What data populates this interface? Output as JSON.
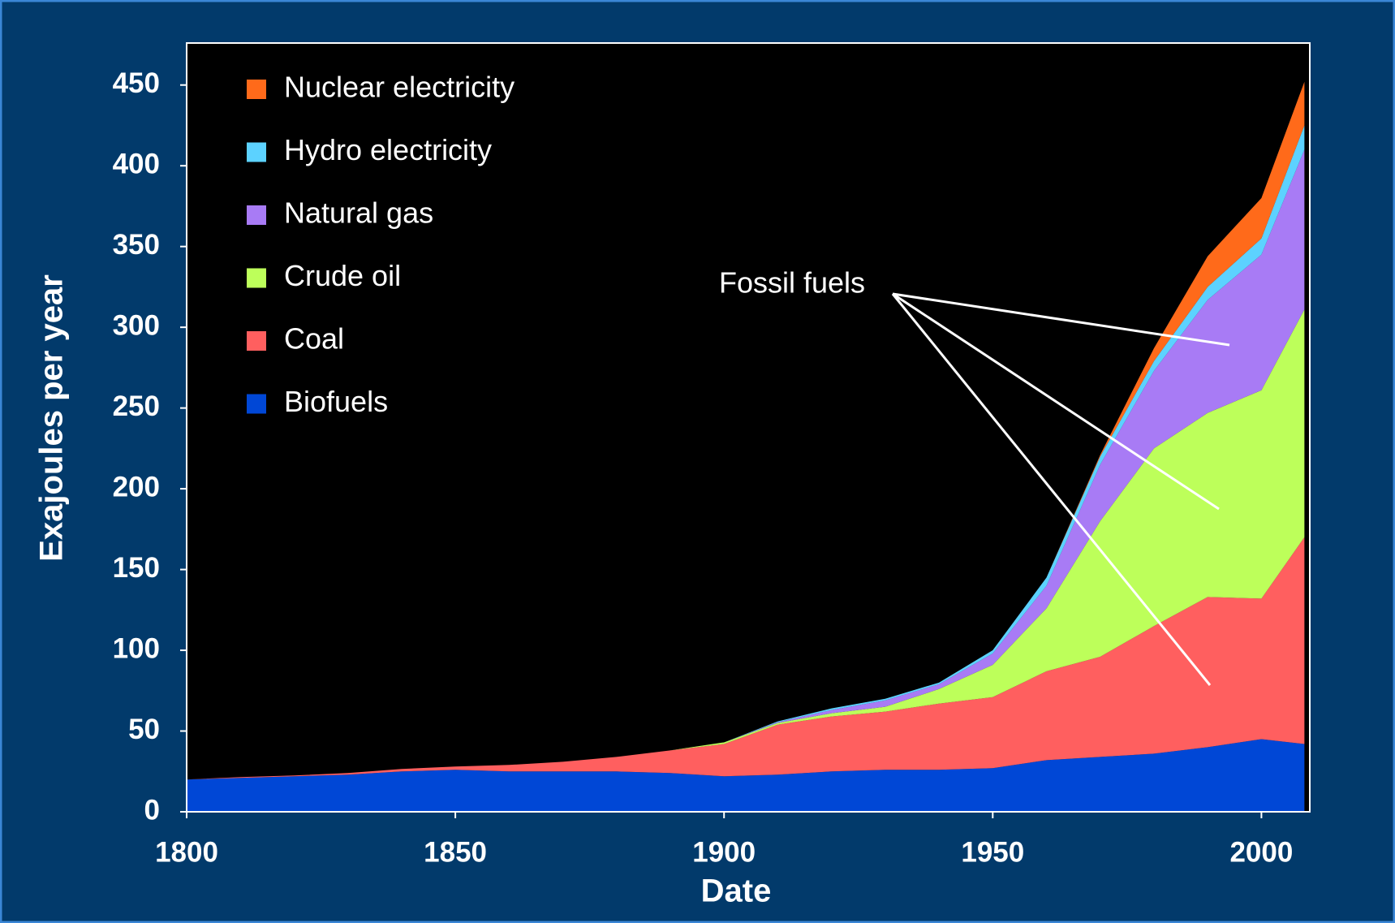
{
  "chart_data": {
    "type": "stacked_area",
    "xlabel": "Date",
    "ylabel": "Exajoules per year",
    "annotation": "Fossil fuels",
    "x": [
      1800,
      1810,
      1820,
      1830,
      1840,
      1850,
      1860,
      1870,
      1880,
      1890,
      1900,
      1910,
      1920,
      1930,
      1940,
      1950,
      1960,
      1970,
      1980,
      1990,
      2000,
      2008
    ],
    "series": [
      {
        "name": "Biofuels",
        "color": "#0047d6",
        "values": [
          20,
          21,
          22,
          23,
          25,
          26,
          25,
          25,
          25,
          24,
          22,
          23,
          25,
          26,
          26,
          27,
          32,
          34,
          36,
          40,
          45,
          42
        ]
      },
      {
        "name": "Coal",
        "color": "#ff5f5f",
        "values": [
          0,
          0.5,
          0.5,
          1,
          1.5,
          2,
          4,
          6,
          9,
          14,
          20,
          31,
          34,
          36,
          41,
          44,
          55,
          62,
          79,
          93,
          87,
          128
        ]
      },
      {
        "name": "Crude oil",
        "color": "#bdff5a",
        "values": [
          0,
          0,
          0,
          0,
          0,
          0,
          0,
          0,
          0,
          0,
          1,
          1,
          2,
          3,
          9,
          20,
          39,
          84,
          110,
          114,
          129,
          141
        ]
      },
      {
        "name": "Natural gas",
        "color": "#a87bf5",
        "values": [
          0,
          0,
          0,
          0,
          0,
          0,
          0,
          0,
          0,
          0,
          0,
          0.5,
          2,
          4,
          3,
          7,
          14,
          35,
          48,
          70,
          84,
          99
        ]
      },
      {
        "name": "Hydro electricity",
        "color": "#5cd2ff",
        "values": [
          0,
          0,
          0,
          0,
          0,
          0,
          0,
          0,
          0,
          0,
          0,
          0.5,
          1,
          1,
          1,
          2,
          5,
          5,
          6,
          8,
          10,
          15
        ]
      },
      {
        "name": "Nuclear electricity",
        "color": "#ff6a1a",
        "values": [
          0,
          0,
          0,
          0,
          0,
          0,
          0,
          0,
          0,
          0,
          0,
          0,
          0,
          0,
          0,
          0,
          0,
          1,
          8,
          19,
          25,
          27
        ]
      }
    ],
    "xlim": [
      1800,
      2009
    ],
    "ylim": [
      0,
      476
    ],
    "xticks": [
      1800,
      1850,
      1900,
      1950,
      2000
    ],
    "yticks": [
      0,
      50,
      100,
      150,
      200,
      250,
      300,
      350,
      400,
      450
    ],
    "legend": "upper left"
  }
}
